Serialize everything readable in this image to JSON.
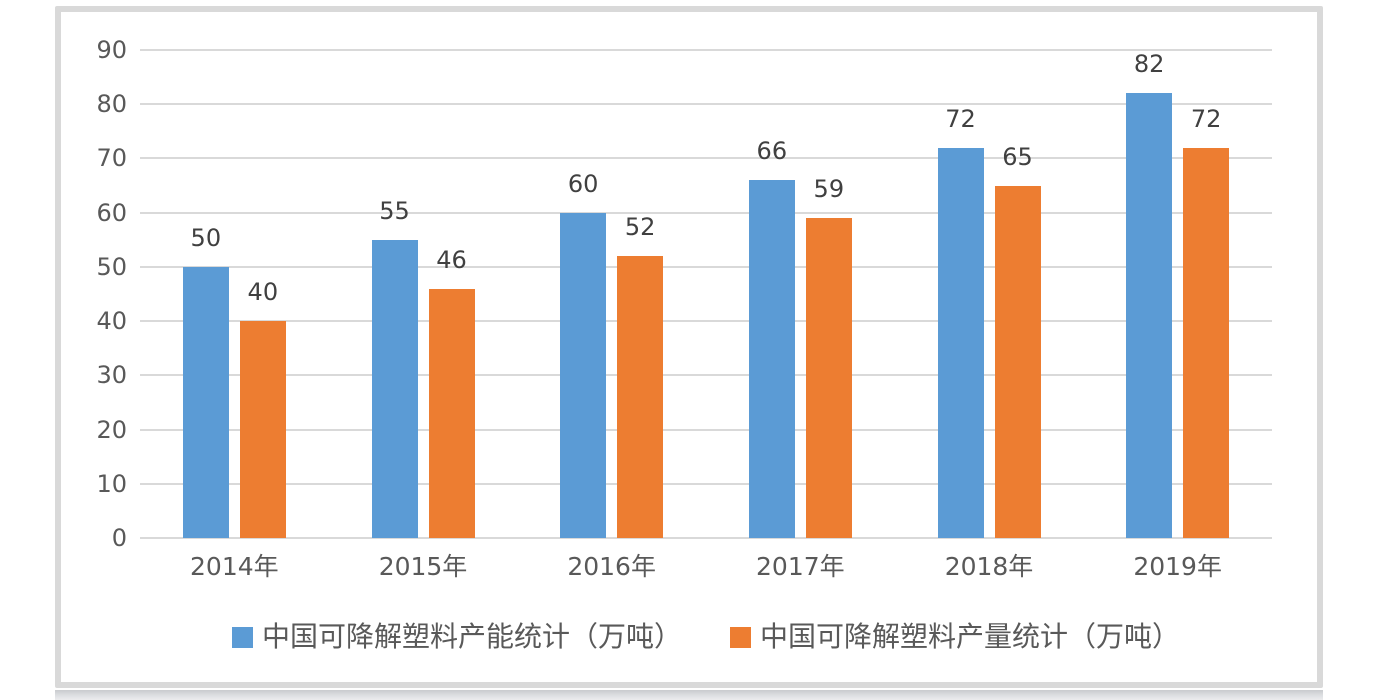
{
  "page": {
    "background_color": "#ffffff",
    "panel_border_color": "#d9d9d9",
    "bottom_edge_color": "#c9cbce"
  },
  "chart_data": {
    "type": "bar",
    "title": "",
    "xlabel": "",
    "ylabel": "",
    "categories": [
      "2014年",
      "2015年",
      "2016年",
      "2017年",
      "2018年",
      "2019年"
    ],
    "series": [
      {
        "name": "中国可降解塑料产能统计（万吨）",
        "color": "#5B9BD5",
        "values": [
          50,
          55,
          60,
          66,
          72,
          82
        ]
      },
      {
        "name": "中国可降解塑料产量统计（万吨）",
        "color": "#ED7D31",
        "values": [
          40,
          46,
          52,
          59,
          65,
          72
        ]
      }
    ],
    "ylim": [
      0,
      90
    ],
    "yticks": [
      0,
      10,
      20,
      30,
      40,
      50,
      60,
      70,
      80,
      90
    ],
    "grid": true,
    "gridline_color": "#d9d9d9",
    "axis_text_color": "#595959",
    "data_label_color": "#404040",
    "data_labels": true,
    "legend_position": "bottom"
  }
}
